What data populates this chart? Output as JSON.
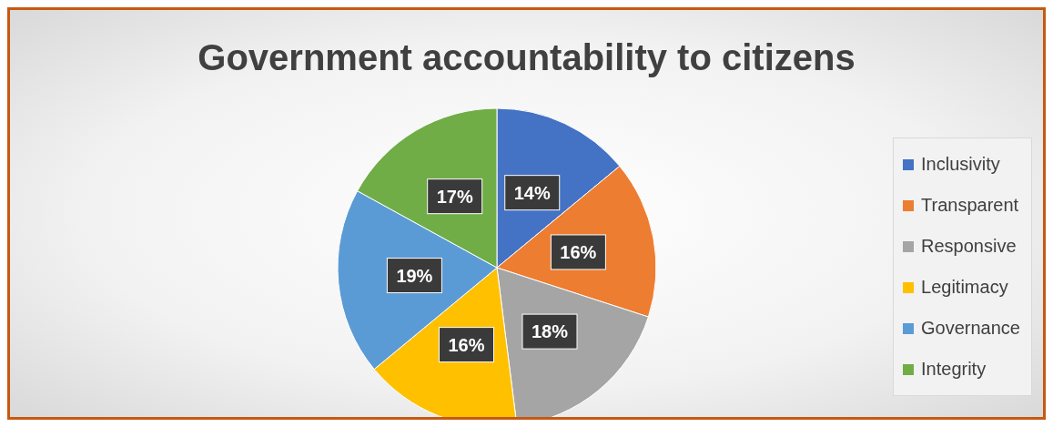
{
  "chart_data": {
    "type": "pie",
    "title": "Government accountability to citizens",
    "categories": [
      "Inclusivity",
      "Transparent",
      "Responsive",
      "Legitimacy",
      "Governance",
      "Integrity"
    ],
    "values": [
      14,
      16,
      18,
      16,
      19,
      17
    ],
    "colors": [
      "#4472c4",
      "#ed7d31",
      "#a5a5a5",
      "#ffc000",
      "#5b9bd5",
      "#70ad47"
    ],
    "value_labels": [
      "14%",
      "16%",
      "18%",
      "16%",
      "19%",
      "17%"
    ],
    "legend": "right"
  }
}
